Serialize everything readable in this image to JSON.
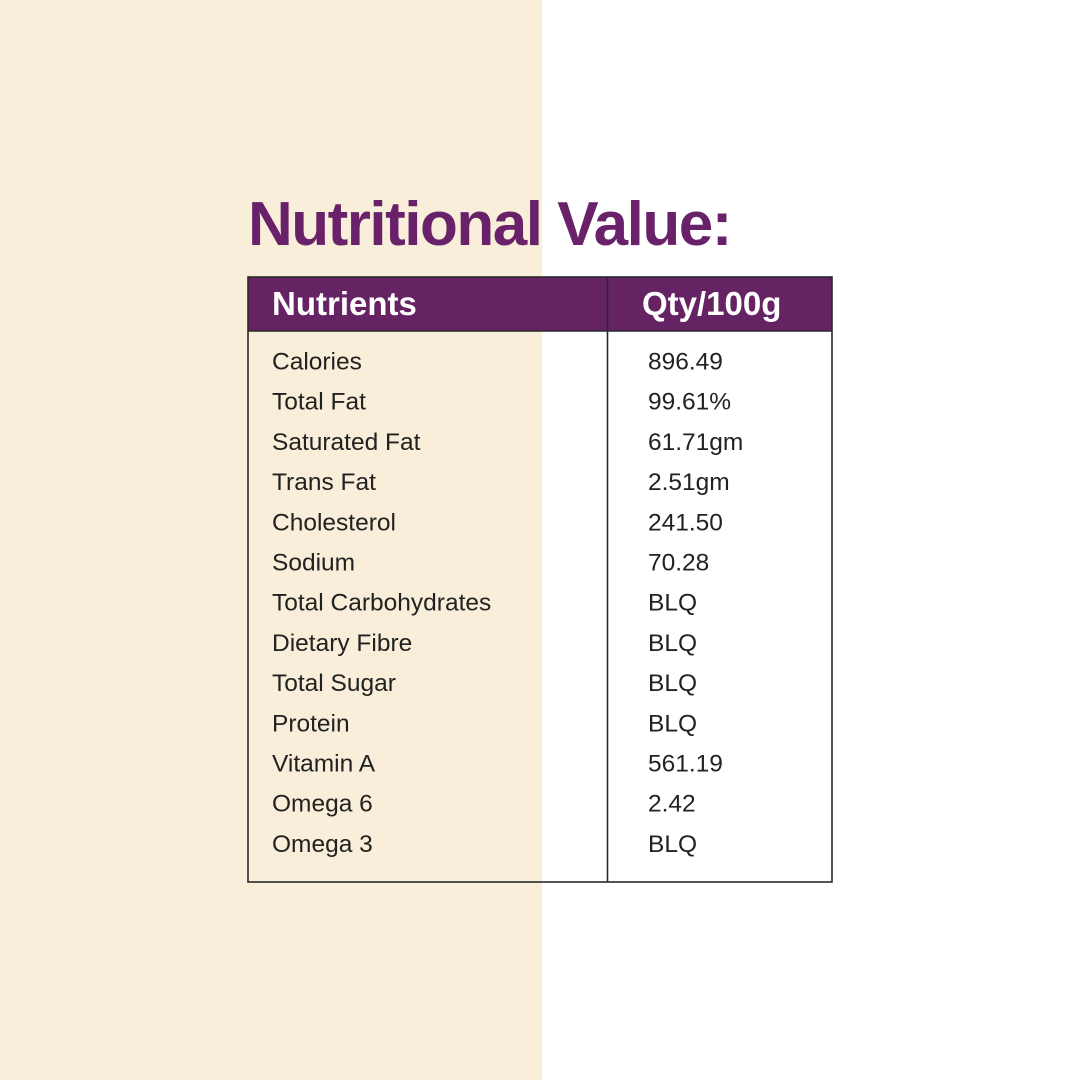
{
  "title": "Nutritional Value:",
  "table": {
    "columns": [
      "Nutrients",
      "Qty/100g"
    ],
    "rows": [
      [
        "Calories",
        "896.49"
      ],
      [
        "Total Fat",
        "99.61%"
      ],
      [
        "Saturated Fat",
        "61.71gm"
      ],
      [
        "Trans Fat",
        "2.51gm"
      ],
      [
        "Cholesterol",
        "241.50"
      ],
      [
        "Sodium",
        "70.28"
      ],
      [
        "Total Carbohydrates",
        "BLQ"
      ],
      [
        "Dietary Fibre",
        "BLQ"
      ],
      [
        "Total Sugar",
        "BLQ"
      ],
      [
        "Protein",
        "BLQ"
      ],
      [
        "Vitamin A",
        "561.19"
      ],
      [
        "Omega 6",
        "2.42"
      ],
      [
        "Omega 3",
        "BLQ"
      ]
    ]
  }
}
